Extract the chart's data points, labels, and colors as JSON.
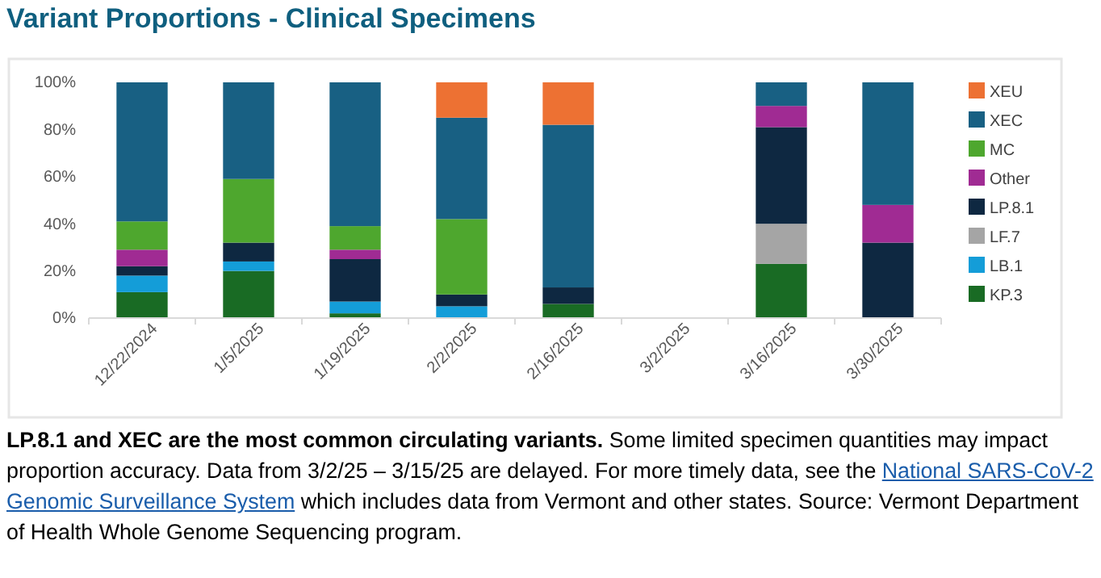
{
  "chart_data": {
    "type": "bar",
    "stacked": true,
    "title": "Variant Proportions - Clinical Specimens",
    "categories": [
      "12/22/2024",
      "1/5/2025",
      "1/19/2025",
      "2/2/2025",
      "2/16/2025",
      "3/2/2025",
      "3/16/2025",
      "3/30/2025"
    ],
    "series": [
      {
        "name": "KP.3",
        "color": "#196b24",
        "values": [
          11,
          20,
          2,
          0,
          6,
          null,
          23,
          0
        ]
      },
      {
        "name": "LB.1",
        "color": "#149dd8",
        "values": [
          7,
          4,
          5,
          5,
          0,
          null,
          0,
          0
        ]
      },
      {
        "name": "LF.7",
        "color": "#a5a5a5",
        "values": [
          0,
          0,
          0,
          0,
          0,
          null,
          17,
          0
        ]
      },
      {
        "name": "LP.8.1",
        "color": "#0e2841",
        "values": [
          4,
          8,
          18,
          5,
          7,
          null,
          41,
          32
        ]
      },
      {
        "name": "Other",
        "color": "#a02b93",
        "values": [
          7,
          0,
          4,
          0,
          0,
          null,
          9,
          16
        ]
      },
      {
        "name": "MC",
        "color": "#4ea72e",
        "values": [
          12,
          27,
          10,
          32,
          0,
          null,
          0,
          0
        ]
      },
      {
        "name": "XEC",
        "color": "#186083",
        "values": [
          59,
          41,
          61,
          43,
          69,
          null,
          10,
          52
        ]
      },
      {
        "name": "XEU",
        "color": "#ed7133",
        "values": [
          0,
          0,
          0,
          15,
          18,
          null,
          0,
          0
        ]
      }
    ],
    "ylim": [
      0,
      100
    ],
    "yticks": [
      {
        "value": 0,
        "label": "0%"
      },
      {
        "value": 20,
        "label": "20%"
      },
      {
        "value": 40,
        "label": "40%"
      },
      {
        "value": 60,
        "label": "60%"
      },
      {
        "value": 80,
        "label": "80%"
      },
      {
        "value": 100,
        "label": "100%"
      }
    ],
    "grid": false,
    "legend": "right",
    "annotations": [
      "LP.8.1 and XEC are the most common circulating variants.",
      "Some limited specimen quantities may impact proportion accuracy. Data from 3/2/25 – 3/15/25 are delayed. For more timely data, see the",
      "National SARS-CoV-2 Genomic Surveillance System",
      "which includes data from Vermont and other states. Source: Vermont Department of Health Whole Genome Sequencing program."
    ]
  }
}
